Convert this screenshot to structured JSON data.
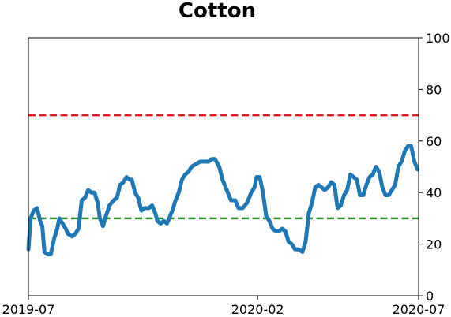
{
  "chart_data": {
    "type": "line",
    "title": "Cotton",
    "xlabel": "",
    "ylabel": "",
    "x_range": [
      "2019-07-01",
      "2020-07-01"
    ],
    "ylim": [
      0,
      100
    ],
    "y_axis_side": "right",
    "grid": false,
    "x_ticks": [
      "2019-07",
      "2020-02",
      "2020-07"
    ],
    "y_ticks": [
      0,
      20,
      40,
      60,
      80,
      100
    ],
    "reference_lines": [
      {
        "y": 70,
        "color": "#e41a1c",
        "style": "dashed"
      },
      {
        "y": 30,
        "color": "#2a8a2a",
        "style": "dashed"
      }
    ],
    "series": [
      {
        "color": "#1f77b4",
        "points": [
          [
            "2019-07-01",
            18
          ],
          [
            "2019-07-03",
            30
          ],
          [
            "2019-07-06",
            33
          ],
          [
            "2019-07-09",
            34
          ],
          [
            "2019-07-12",
            29
          ],
          [
            "2019-07-14",
            27
          ],
          [
            "2019-07-16",
            17
          ],
          [
            "2019-07-19",
            16
          ],
          [
            "2019-07-22",
            16
          ],
          [
            "2019-07-25",
            22
          ],
          [
            "2019-07-28",
            26
          ],
          [
            "2019-07-30",
            30
          ],
          [
            "2019-08-02",
            28
          ],
          [
            "2019-08-05",
            26
          ],
          [
            "2019-08-07",
            24
          ],
          [
            "2019-08-11",
            23
          ],
          [
            "2019-08-14",
            24
          ],
          [
            "2019-08-17",
            26
          ],
          [
            "2019-08-20",
            37
          ],
          [
            "2019-08-23",
            38
          ],
          [
            "2019-08-26",
            41
          ],
          [
            "2019-08-29",
            40
          ],
          [
            "2019-09-01",
            40
          ],
          [
            "2019-09-04",
            36
          ],
          [
            "2019-09-06",
            30
          ],
          [
            "2019-09-09",
            27
          ],
          [
            "2019-09-11",
            30
          ],
          [
            "2019-09-15",
            35
          ],
          [
            "2019-09-19",
            37
          ],
          [
            "2019-09-22",
            38
          ],
          [
            "2019-09-25",
            43
          ],
          [
            "2019-09-28",
            44
          ],
          [
            "2019-10-01",
            46
          ],
          [
            "2019-10-04",
            45
          ],
          [
            "2019-10-06",
            45
          ],
          [
            "2019-10-09",
            40
          ],
          [
            "2019-10-12",
            38
          ],
          [
            "2019-10-15",
            33
          ],
          [
            "2019-10-18",
            34
          ],
          [
            "2019-10-22",
            34
          ],
          [
            "2019-10-25",
            35
          ],
          [
            "2019-10-28",
            32
          ],
          [
            "2019-10-30",
            29
          ],
          [
            "2019-11-02",
            28
          ],
          [
            "2019-11-05",
            29
          ],
          [
            "2019-11-08",
            28
          ],
          [
            "2019-11-10",
            30
          ],
          [
            "2019-11-13",
            33
          ],
          [
            "2019-11-16",
            37
          ],
          [
            "2019-11-19",
            40
          ],
          [
            "2019-11-22",
            45
          ],
          [
            "2019-11-25",
            47
          ],
          [
            "2019-11-28",
            48
          ],
          [
            "2019-12-01",
            50
          ],
          [
            "2019-12-05",
            51
          ],
          [
            "2019-12-09",
            52
          ],
          [
            "2019-12-13",
            52
          ],
          [
            "2019-12-17",
            52
          ],
          [
            "2019-12-20",
            53
          ],
          [
            "2019-12-23",
            53
          ],
          [
            "2019-12-27",
            50
          ],
          [
            "2019-12-30",
            45
          ],
          [
            "2020-01-03",
            41
          ],
          [
            "2020-01-07",
            37
          ],
          [
            "2020-01-11",
            37
          ],
          [
            "2020-01-14",
            34
          ],
          [
            "2020-01-18",
            34
          ],
          [
            "2020-01-22",
            36
          ],
          [
            "2020-01-26",
            40
          ],
          [
            "2020-01-29",
            42
          ],
          [
            "2020-01-31",
            46
          ],
          [
            "2020-02-03",
            46
          ],
          [
            "2020-02-06",
            40
          ],
          [
            "2020-02-09",
            31
          ],
          [
            "2020-02-12",
            29
          ],
          [
            "2020-02-15",
            26
          ],
          [
            "2020-02-18",
            25
          ],
          [
            "2020-02-21",
            25
          ],
          [
            "2020-02-24",
            26
          ],
          [
            "2020-02-27",
            25
          ],
          [
            "2020-03-01",
            21
          ],
          [
            "2020-03-04",
            20
          ],
          [
            "2020-03-07",
            18
          ],
          [
            "2020-03-10",
            18
          ],
          [
            "2020-03-14",
            17
          ],
          [
            "2020-03-17",
            21
          ],
          [
            "2020-03-20",
            32
          ],
          [
            "2020-03-23",
            36
          ],
          [
            "2020-03-26",
            42
          ],
          [
            "2020-03-29",
            43
          ],
          [
            "2020-04-01",
            42
          ],
          [
            "2020-04-04",
            41
          ],
          [
            "2020-04-07",
            42
          ],
          [
            "2020-04-10",
            44
          ],
          [
            "2020-04-13",
            43
          ],
          [
            "2020-04-16",
            34
          ],
          [
            "2020-04-19",
            35
          ],
          [
            "2020-04-22",
            39
          ],
          [
            "2020-04-25",
            41
          ],
          [
            "2020-04-28",
            47
          ],
          [
            "2020-05-01",
            46
          ],
          [
            "2020-05-04",
            45
          ],
          [
            "2020-05-07",
            39
          ],
          [
            "2020-05-10",
            39
          ],
          [
            "2020-05-13",
            43
          ],
          [
            "2020-05-16",
            46
          ],
          [
            "2020-05-19",
            47
          ],
          [
            "2020-05-22",
            50
          ],
          [
            "2020-05-25",
            48
          ],
          [
            "2020-05-28",
            42
          ],
          [
            "2020-05-31",
            39
          ],
          [
            "2020-06-03",
            39
          ],
          [
            "2020-06-06",
            41
          ],
          [
            "2020-06-09",
            43
          ],
          [
            "2020-06-12",
            50
          ],
          [
            "2020-06-15",
            52
          ],
          [
            "2020-06-18",
            56
          ],
          [
            "2020-06-21",
            58
          ],
          [
            "2020-06-24",
            58
          ],
          [
            "2020-06-27",
            52
          ],
          [
            "2020-06-30",
            49
          ]
        ]
      }
    ]
  }
}
